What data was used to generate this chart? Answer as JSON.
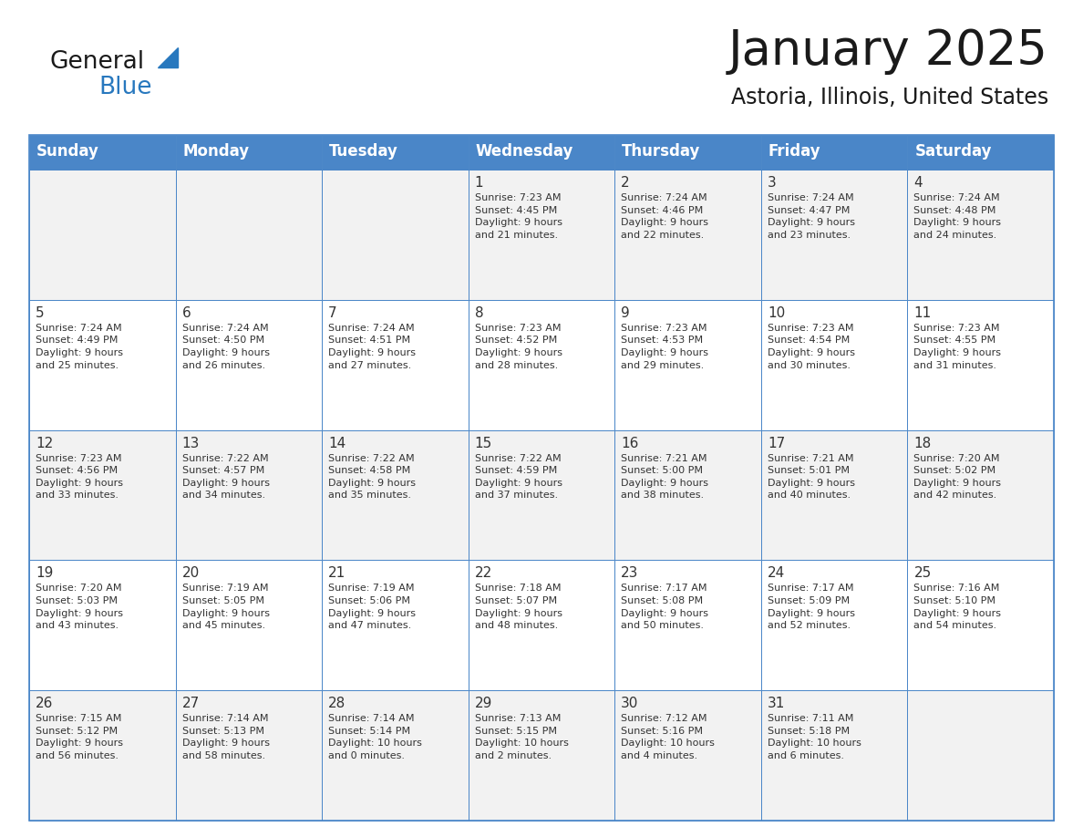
{
  "title": "January 2025",
  "subtitle": "Astoria, Illinois, United States",
  "header_color": "#4A86C8",
  "header_text_color": "#FFFFFF",
  "cell_bg_even": "#F2F2F2",
  "cell_bg_odd": "#FFFFFF",
  "border_color": "#4A86C8",
  "text_color": "#333333",
  "days_of_week": [
    "Sunday",
    "Monday",
    "Tuesday",
    "Wednesday",
    "Thursday",
    "Friday",
    "Saturday"
  ],
  "weeks": [
    [
      {
        "day": "",
        "info": ""
      },
      {
        "day": "",
        "info": ""
      },
      {
        "day": "",
        "info": ""
      },
      {
        "day": "1",
        "info": "Sunrise: 7:23 AM\nSunset: 4:45 PM\nDaylight: 9 hours\nand 21 minutes."
      },
      {
        "day": "2",
        "info": "Sunrise: 7:24 AM\nSunset: 4:46 PM\nDaylight: 9 hours\nand 22 minutes."
      },
      {
        "day": "3",
        "info": "Sunrise: 7:24 AM\nSunset: 4:47 PM\nDaylight: 9 hours\nand 23 minutes."
      },
      {
        "day": "4",
        "info": "Sunrise: 7:24 AM\nSunset: 4:48 PM\nDaylight: 9 hours\nand 24 minutes."
      }
    ],
    [
      {
        "day": "5",
        "info": "Sunrise: 7:24 AM\nSunset: 4:49 PM\nDaylight: 9 hours\nand 25 minutes."
      },
      {
        "day": "6",
        "info": "Sunrise: 7:24 AM\nSunset: 4:50 PM\nDaylight: 9 hours\nand 26 minutes."
      },
      {
        "day": "7",
        "info": "Sunrise: 7:24 AM\nSunset: 4:51 PM\nDaylight: 9 hours\nand 27 minutes."
      },
      {
        "day": "8",
        "info": "Sunrise: 7:23 AM\nSunset: 4:52 PM\nDaylight: 9 hours\nand 28 minutes."
      },
      {
        "day": "9",
        "info": "Sunrise: 7:23 AM\nSunset: 4:53 PM\nDaylight: 9 hours\nand 29 minutes."
      },
      {
        "day": "10",
        "info": "Sunrise: 7:23 AM\nSunset: 4:54 PM\nDaylight: 9 hours\nand 30 minutes."
      },
      {
        "day": "11",
        "info": "Sunrise: 7:23 AM\nSunset: 4:55 PM\nDaylight: 9 hours\nand 31 minutes."
      }
    ],
    [
      {
        "day": "12",
        "info": "Sunrise: 7:23 AM\nSunset: 4:56 PM\nDaylight: 9 hours\nand 33 minutes."
      },
      {
        "day": "13",
        "info": "Sunrise: 7:22 AM\nSunset: 4:57 PM\nDaylight: 9 hours\nand 34 minutes."
      },
      {
        "day": "14",
        "info": "Sunrise: 7:22 AM\nSunset: 4:58 PM\nDaylight: 9 hours\nand 35 minutes."
      },
      {
        "day": "15",
        "info": "Sunrise: 7:22 AM\nSunset: 4:59 PM\nDaylight: 9 hours\nand 37 minutes."
      },
      {
        "day": "16",
        "info": "Sunrise: 7:21 AM\nSunset: 5:00 PM\nDaylight: 9 hours\nand 38 minutes."
      },
      {
        "day": "17",
        "info": "Sunrise: 7:21 AM\nSunset: 5:01 PM\nDaylight: 9 hours\nand 40 minutes."
      },
      {
        "day": "18",
        "info": "Sunrise: 7:20 AM\nSunset: 5:02 PM\nDaylight: 9 hours\nand 42 minutes."
      }
    ],
    [
      {
        "day": "19",
        "info": "Sunrise: 7:20 AM\nSunset: 5:03 PM\nDaylight: 9 hours\nand 43 minutes."
      },
      {
        "day": "20",
        "info": "Sunrise: 7:19 AM\nSunset: 5:05 PM\nDaylight: 9 hours\nand 45 minutes."
      },
      {
        "day": "21",
        "info": "Sunrise: 7:19 AM\nSunset: 5:06 PM\nDaylight: 9 hours\nand 47 minutes."
      },
      {
        "day": "22",
        "info": "Sunrise: 7:18 AM\nSunset: 5:07 PM\nDaylight: 9 hours\nand 48 minutes."
      },
      {
        "day": "23",
        "info": "Sunrise: 7:17 AM\nSunset: 5:08 PM\nDaylight: 9 hours\nand 50 minutes."
      },
      {
        "day": "24",
        "info": "Sunrise: 7:17 AM\nSunset: 5:09 PM\nDaylight: 9 hours\nand 52 minutes."
      },
      {
        "day": "25",
        "info": "Sunrise: 7:16 AM\nSunset: 5:10 PM\nDaylight: 9 hours\nand 54 minutes."
      }
    ],
    [
      {
        "day": "26",
        "info": "Sunrise: 7:15 AM\nSunset: 5:12 PM\nDaylight: 9 hours\nand 56 minutes."
      },
      {
        "day": "27",
        "info": "Sunrise: 7:14 AM\nSunset: 5:13 PM\nDaylight: 9 hours\nand 58 minutes."
      },
      {
        "day": "28",
        "info": "Sunrise: 7:14 AM\nSunset: 5:14 PM\nDaylight: 10 hours\nand 0 minutes."
      },
      {
        "day": "29",
        "info": "Sunrise: 7:13 AM\nSunset: 5:15 PM\nDaylight: 10 hours\nand 2 minutes."
      },
      {
        "day": "30",
        "info": "Sunrise: 7:12 AM\nSunset: 5:16 PM\nDaylight: 10 hours\nand 4 minutes."
      },
      {
        "day": "31",
        "info": "Sunrise: 7:11 AM\nSunset: 5:18 PM\nDaylight: 10 hours\nand 6 minutes."
      },
      {
        "day": "",
        "info": ""
      }
    ]
  ],
  "logo_general_color": "#1a1a1a",
  "logo_blue_color": "#2878BE",
  "logo_triangle_color": "#2878BE",
  "fig_width": 11.88,
  "fig_height": 9.18,
  "dpi": 100
}
